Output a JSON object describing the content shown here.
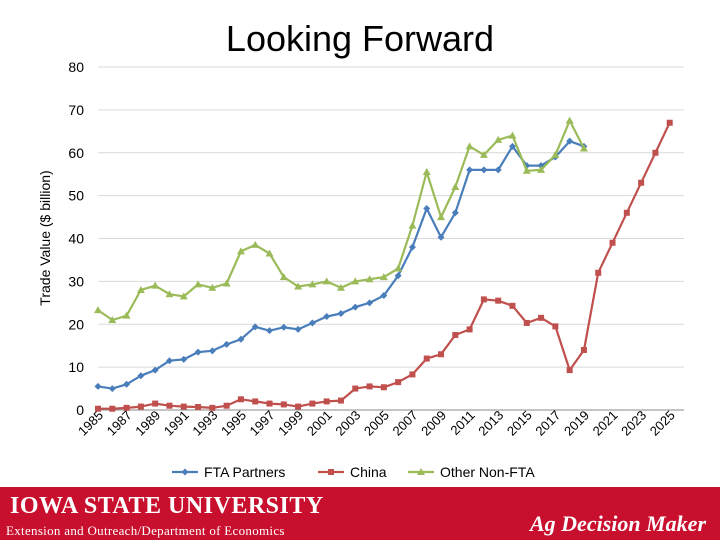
{
  "slide": {
    "title": "Looking Forward"
  },
  "footer": {
    "university": "IOWA STATE UNIVERSITY",
    "department": "Extension and Outreach/Department of Economics",
    "program": "Ag Decision Maker",
    "color": "#c8102e"
  },
  "chart_data": {
    "type": "line",
    "title": "",
    "xlabel": "",
    "ylabel": "Trade Value ($ billion)",
    "ylim": [
      0,
      80
    ],
    "yticks": [
      0,
      10,
      20,
      30,
      40,
      50,
      60,
      70,
      80
    ],
    "xlim": [
      1985,
      2026
    ],
    "xticks": [
      "1985",
      "1987",
      "1989",
      "1991",
      "1993",
      "1995",
      "1997",
      "1999",
      "2001",
      "2003",
      "2005",
      "2007",
      "2009",
      "2011",
      "2013",
      "2015",
      "2017",
      "2019",
      "2021",
      "2023",
      "2025"
    ],
    "grid": true,
    "legend_position": "bottom",
    "series": [
      {
        "name": "FTA Partners",
        "color": "#4a7ebb",
        "marker": "diamond",
        "x": [
          1985,
          1986,
          1987,
          1988,
          1989,
          1990,
          1991,
          1992,
          1993,
          1994,
          1995,
          1996,
          1997,
          1998,
          1999,
          2000,
          2001,
          2002,
          2003,
          2004,
          2005,
          2006,
          2007,
          2008,
          2009,
          2010,
          2011,
          2012,
          2013,
          2014,
          2015,
          2016,
          2017,
          2018,
          2019
        ],
        "values": [
          5.5,
          5.0,
          6.0,
          8.0,
          9.3,
          11.5,
          11.8,
          13.5,
          13.8,
          15.3,
          16.5,
          19.4,
          18.5,
          19.3,
          18.8,
          20.3,
          21.8,
          22.5,
          24.0,
          25.0,
          26.7,
          31.3,
          38.0,
          47.0,
          40.3,
          46.0,
          56.0,
          56.0,
          56.0,
          61.5,
          57.0,
          57.0,
          59.0,
          62.7,
          61.5
        ]
      },
      {
        "name": "China",
        "color": "#c0504d",
        "marker": "square",
        "x": [
          1985,
          1986,
          1987,
          1988,
          1989,
          1990,
          1991,
          1992,
          1993,
          1994,
          1995,
          1996,
          1997,
          1998,
          1999,
          2000,
          2001,
          2002,
          2003,
          2004,
          2005,
          2006,
          2007,
          2008,
          2009,
          2010,
          2011,
          2012,
          2013,
          2014,
          2015,
          2016,
          2017,
          2018,
          2019,
          2020,
          2021,
          2022,
          2023,
          2024,
          2025
        ],
        "values": [
          0.3,
          0.3,
          0.5,
          0.8,
          1.5,
          1.0,
          0.8,
          0.7,
          0.5,
          1.0,
          2.5,
          2.0,
          1.5,
          1.3,
          0.8,
          1.5,
          2.0,
          2.2,
          5.0,
          5.5,
          5.3,
          6.5,
          8.3,
          12.0,
          13.0,
          17.5,
          18.8,
          25.8,
          25.5,
          24.3,
          20.3,
          21.5,
          19.5,
          9.3,
          14.0,
          32.0,
          39.0,
          46.0,
          53.0,
          60.0,
          67.0
        ]
      },
      {
        "name": "Other Non-FTA",
        "color": "#9bbb59",
        "marker": "triangle",
        "x": [
          1985,
          1986,
          1987,
          1988,
          1989,
          1990,
          1991,
          1992,
          1993,
          1994,
          1995,
          1996,
          1997,
          1998,
          1999,
          2000,
          2001,
          2002,
          2003,
          2004,
          2005,
          2006,
          2007,
          2008,
          2009,
          2010,
          2011,
          2012,
          2013,
          2014,
          2015,
          2016,
          2017,
          2018,
          2019
        ],
        "values": [
          23.3,
          21.0,
          22.0,
          28.0,
          29.0,
          27.0,
          26.5,
          29.3,
          28.5,
          29.5,
          37.0,
          38.5,
          36.5,
          31.0,
          28.8,
          29.3,
          30.0,
          28.5,
          30.0,
          30.5,
          31.0,
          33.0,
          43.0,
          55.5,
          45.0,
          52.0,
          61.5,
          59.5,
          63.0,
          64.0,
          55.8,
          56.0,
          59.5,
          67.5,
          61.0
        ]
      }
    ]
  }
}
